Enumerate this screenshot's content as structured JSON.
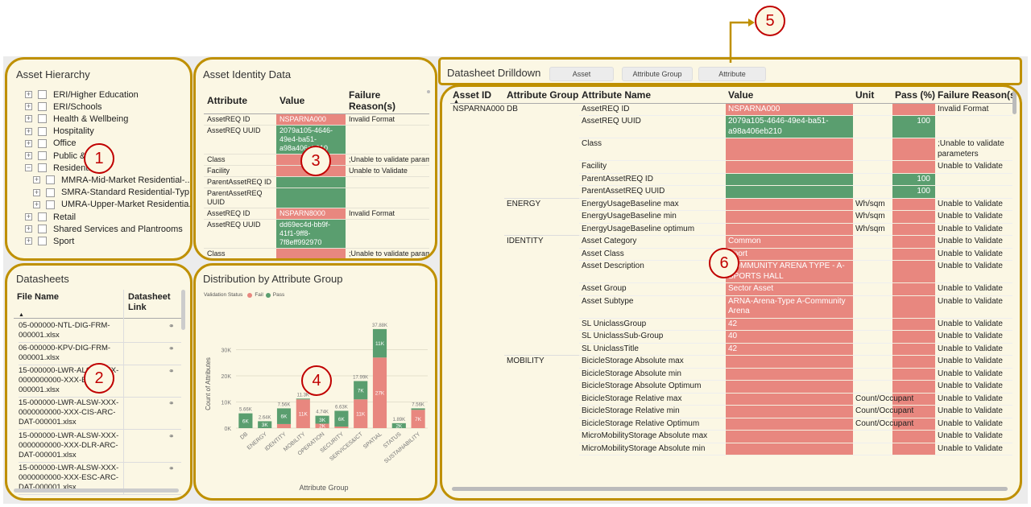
{
  "callouts": [
    "1",
    "2",
    "3",
    "4",
    "5",
    "6"
  ],
  "hierarchy": {
    "title": "Asset Hierarchy",
    "items": [
      {
        "label": "ERI/Higher Education",
        "exp": "+",
        "level": 0
      },
      {
        "label": "ERI/Schools",
        "exp": "+",
        "level": 0
      },
      {
        "label": "Health & Wellbeing",
        "exp": "+",
        "level": 0
      },
      {
        "label": "Hospitality",
        "exp": "+",
        "level": 0
      },
      {
        "label": "Office",
        "exp": "+",
        "level": 0
      },
      {
        "label": "Public & Assets",
        "exp": "+",
        "level": 0
      },
      {
        "label": "Residential",
        "exp": "−",
        "level": 0
      },
      {
        "label": "MMRA-Mid-Market Residential-...",
        "exp": "+",
        "level": 1
      },
      {
        "label": "SMRA-Standard Residential-Typ...",
        "exp": "+",
        "level": 1
      },
      {
        "label": "UMRA-Upper-Market Residentia...",
        "exp": "+",
        "level": 1
      },
      {
        "label": "Retail",
        "exp": "+",
        "level": 0
      },
      {
        "label": "Shared Services and Plantrooms",
        "exp": "+",
        "level": 0
      },
      {
        "label": "Sport",
        "exp": "+",
        "level": 0
      }
    ]
  },
  "datasheets": {
    "title": "Datasheets",
    "col_file": "File Name",
    "col_link": "Datasheet Link",
    "sort_icon": "▲",
    "rows": [
      "05-000000-NTL-DIG-FRM-000001.xlsx",
      "06-000000-KPV-DIG-FRM-000001.xlsx",
      "15-000000-LWR-ALSW-XXX-0000000000-XXX-BIM-DAT-000001.xlsx",
      "15-000000-LWR-ALSW-XXX-0000000000-XXX-CIS-ARC-DAT-000001.xlsx",
      "15-000000-LWR-ALSW-XXX-0000000000-XXX-DLR-ARC-DAT-000001.xlsx",
      "15-000000-LWR-ALSW-XXX-0000000000-XXX-ESC-ARC-DAT-000001.xlsx"
    ]
  },
  "identity": {
    "title": "Asset Identity Data",
    "headers": [
      "Attribute",
      "Value",
      "Failure Reason(s)"
    ],
    "rows": [
      {
        "a": "AssetREQ ID",
        "v": "NSPARNA000",
        "s": "red",
        "r": "Invalid Format"
      },
      {
        "a": "AssetREQ UUID",
        "v": "2079a105-4646-49e4-ba51-a98a406eb210",
        "s": "grn",
        "r": ""
      },
      {
        "a": "Class",
        "v": "",
        "s": "red",
        "r": ";Unable to validate parameters"
      },
      {
        "a": "Facility",
        "v": "",
        "s": "red",
        "r": "Unable to Validate"
      },
      {
        "a": "ParentAssetREQ ID",
        "v": "",
        "s": "grn",
        "r": ""
      },
      {
        "a": "ParentAssetREQ UUID",
        "v": "",
        "s": "grn",
        "r": ""
      },
      {
        "a": "AssetREQ ID",
        "v": "NSPARN8000",
        "s": "red",
        "r": "Invalid Format"
      },
      {
        "a": "AssetREQ UUID",
        "v": "dd69ec4d-bb9f-41f1-9ff8-7f8eff992970",
        "s": "grn",
        "r": ""
      },
      {
        "a": "Class",
        "v": "",
        "s": "red",
        "r": ";Unable to validate parameters"
      },
      {
        "a": "Facility",
        "v": "",
        "s": "red",
        "r": "Unable to Validate"
      }
    ]
  },
  "distribution": {
    "title": "Distribution by Attribute Group",
    "legend_title": "Validation Status",
    "legend": [
      {
        "name": "Fail",
        "color": "#e8877f"
      },
      {
        "name": "Pass",
        "color": "#5a9e6f"
      }
    ]
  },
  "chart_data": {
    "type": "bar",
    "stacked": true,
    "title": "Distribution by Attribute Group",
    "xlabel": "Attribute Group",
    "ylabel": "Count of Attributes",
    "ylim": [
      0,
      40000
    ],
    "yticks": [
      "0K",
      "10K",
      "20K",
      "30K"
    ],
    "categories": [
      "DB",
      "ENERGY",
      "IDENTITY",
      "MOBILITY",
      "OPERATION",
      "SECURITY",
      "SERVICES&ICT",
      "SPATIAL",
      "STATUS",
      "SUSTAINABILITY"
    ],
    "totals": [
      "5.66K",
      "2.64K",
      "7.56K",
      "11.3K",
      "4.74K",
      "6.63K",
      "17.99K",
      "37.88K",
      "1.89K",
      "7.56K"
    ],
    "series": [
      {
        "name": "Fail",
        "color": "#e8877f",
        "values": [
          0,
          0,
          1560,
          11000,
          1700,
          600,
          11000,
          27000,
          0,
          7000
        ],
        "labels": [
          "",
          "",
          "",
          "11K",
          "2K",
          "",
          "11K",
          "27K",
          "",
          "7K"
        ]
      },
      {
        "name": "Pass",
        "color": "#5a9e6f",
        "values": [
          5660,
          2640,
          6000,
          300,
          3040,
          6030,
          7000,
          10880,
          1890,
          560
        ],
        "labels": [
          "6K",
          "3K",
          "6K",
          "",
          "3K",
          "6K",
          "7K",
          "11K",
          "2K",
          ""
        ]
      }
    ]
  },
  "drilldown": {
    "title": "Datasheet Drilldown",
    "tabs": [
      "Asset",
      "Attribute Group",
      "Attribute"
    ],
    "headers": [
      "Asset ID",
      "Attribute Group",
      "Attribute Name",
      "Value",
      "Unit",
      "Pass (%)",
      "Failure Reason(s)"
    ],
    "asset_id": "NSPARNA000",
    "rows": [
      {
        "g": "DB",
        "n": "AssetREQ ID",
        "v": "NSPARNA000",
        "vs": "red",
        "u": "",
        "p": "",
        "ps": "red",
        "f": "Invalid Format"
      },
      {
        "g": "",
        "n": "AssetREQ UUID",
        "v": "2079a105-4646-49e4-ba51-a98a406eb210",
        "vs": "grn",
        "u": "",
        "p": "100",
        "ps": "grn",
        "f": ""
      },
      {
        "g": "",
        "n": "Class",
        "v": "",
        "vs": "red",
        "u": "",
        "p": "",
        "ps": "red",
        "f": ";Unable to validate parameters"
      },
      {
        "g": "",
        "n": "Facility",
        "v": "",
        "vs": "red",
        "u": "",
        "p": "",
        "ps": "red",
        "f": "Unable to Validate"
      },
      {
        "g": "",
        "n": "ParentAssetREQ ID",
        "v": "",
        "vs": "grn",
        "u": "",
        "p": "100",
        "ps": "grn",
        "f": ""
      },
      {
        "g": "",
        "n": "ParentAssetREQ UUID",
        "v": "",
        "vs": "grn",
        "u": "",
        "p": "100",
        "ps": "grn",
        "f": ""
      },
      {
        "g": "ENERGY",
        "n": "EnergyUsageBaseline max",
        "v": "",
        "vs": "red",
        "u": "Wh/sqm",
        "p": "",
        "ps": "red",
        "f": "Unable to Validate"
      },
      {
        "g": "",
        "n": "EnergyUsageBaseline min",
        "v": "",
        "vs": "red",
        "u": "Wh/sqm",
        "p": "",
        "ps": "red",
        "f": "Unable to Validate"
      },
      {
        "g": "",
        "n": "EnergyUsageBaseline optimum",
        "v": "",
        "vs": "red",
        "u": "Wh/sqm",
        "p": "",
        "ps": "red",
        "f": "Unable to Validate"
      },
      {
        "g": "IDENTITY",
        "n": "Asset Category",
        "v": "Common",
        "vs": "red",
        "u": "",
        "p": "",
        "ps": "red",
        "f": "Unable to Validate"
      },
      {
        "g": "",
        "n": "Asset Class",
        "v": "Sport",
        "vs": "red",
        "u": "",
        "p": "",
        "ps": "red",
        "f": "Unable to Validate"
      },
      {
        "g": "",
        "n": "Asset Description",
        "v": "COMMUNITY ARENA TYPE - A-SPORTS HALL",
        "vs": "red",
        "u": "",
        "p": "",
        "ps": "red",
        "f": "Unable to Validate"
      },
      {
        "g": "",
        "n": "Asset Group",
        "v": "Sector Asset",
        "vs": "red",
        "u": "",
        "p": "",
        "ps": "red",
        "f": "Unable to Validate"
      },
      {
        "g": "",
        "n": "Asset Subtype",
        "v": "ARNA-Arena-Type A-Community Arena",
        "vs": "red",
        "u": "",
        "p": "",
        "ps": "red",
        "f": "Unable to Validate"
      },
      {
        "g": "",
        "n": "SL UniclassGroup",
        "v": "42",
        "vs": "red",
        "u": "",
        "p": "",
        "ps": "red",
        "f": "Unable to Validate"
      },
      {
        "g": "",
        "n": "SL UniclassSub-Group",
        "v": "40",
        "vs": "red",
        "u": "",
        "p": "",
        "ps": "red",
        "f": "Unable to Validate"
      },
      {
        "g": "",
        "n": "SL UniclassTitle",
        "v": "42",
        "vs": "red",
        "u": "",
        "p": "",
        "ps": "red",
        "f": "Unable to Validate"
      },
      {
        "g": "MOBILITY",
        "n": "BicicleStorage Absolute max",
        "v": "",
        "vs": "red",
        "u": "",
        "p": "",
        "ps": "red",
        "f": "Unable to Validate"
      },
      {
        "g": "",
        "n": "BicicleStorage Absolute min",
        "v": "",
        "vs": "red",
        "u": "",
        "p": "",
        "ps": "red",
        "f": "Unable to Validate"
      },
      {
        "g": "",
        "n": "BicicleStorage Absolute Optimum",
        "v": "",
        "vs": "red",
        "u": "",
        "p": "",
        "ps": "red",
        "f": "Unable to Validate"
      },
      {
        "g": "",
        "n": "BicicleStorage Relative max",
        "v": "",
        "vs": "red",
        "u": "Count/Occupant",
        "p": "",
        "ps": "red",
        "f": "Unable to Validate"
      },
      {
        "g": "",
        "n": "BicicleStorage Relative min",
        "v": "",
        "vs": "red",
        "u": "Count/Occupant",
        "p": "",
        "ps": "red",
        "f": "Unable to Validate"
      },
      {
        "g": "",
        "n": "BicicleStorage Relative Optimum",
        "v": "",
        "vs": "red",
        "u": "Count/Occupant",
        "p": "",
        "ps": "red",
        "f": "Unable to Validate"
      },
      {
        "g": "",
        "n": "MicroMobilityStorage Absolute max",
        "v": "",
        "vs": "red",
        "u": "",
        "p": "",
        "ps": "red",
        "f": "Unable to Validate"
      },
      {
        "g": "",
        "n": "MicroMobilityStorage Absolute min",
        "v": "",
        "vs": "red",
        "u": "",
        "p": "",
        "ps": "red",
        "f": "Unable to Validate"
      }
    ]
  }
}
